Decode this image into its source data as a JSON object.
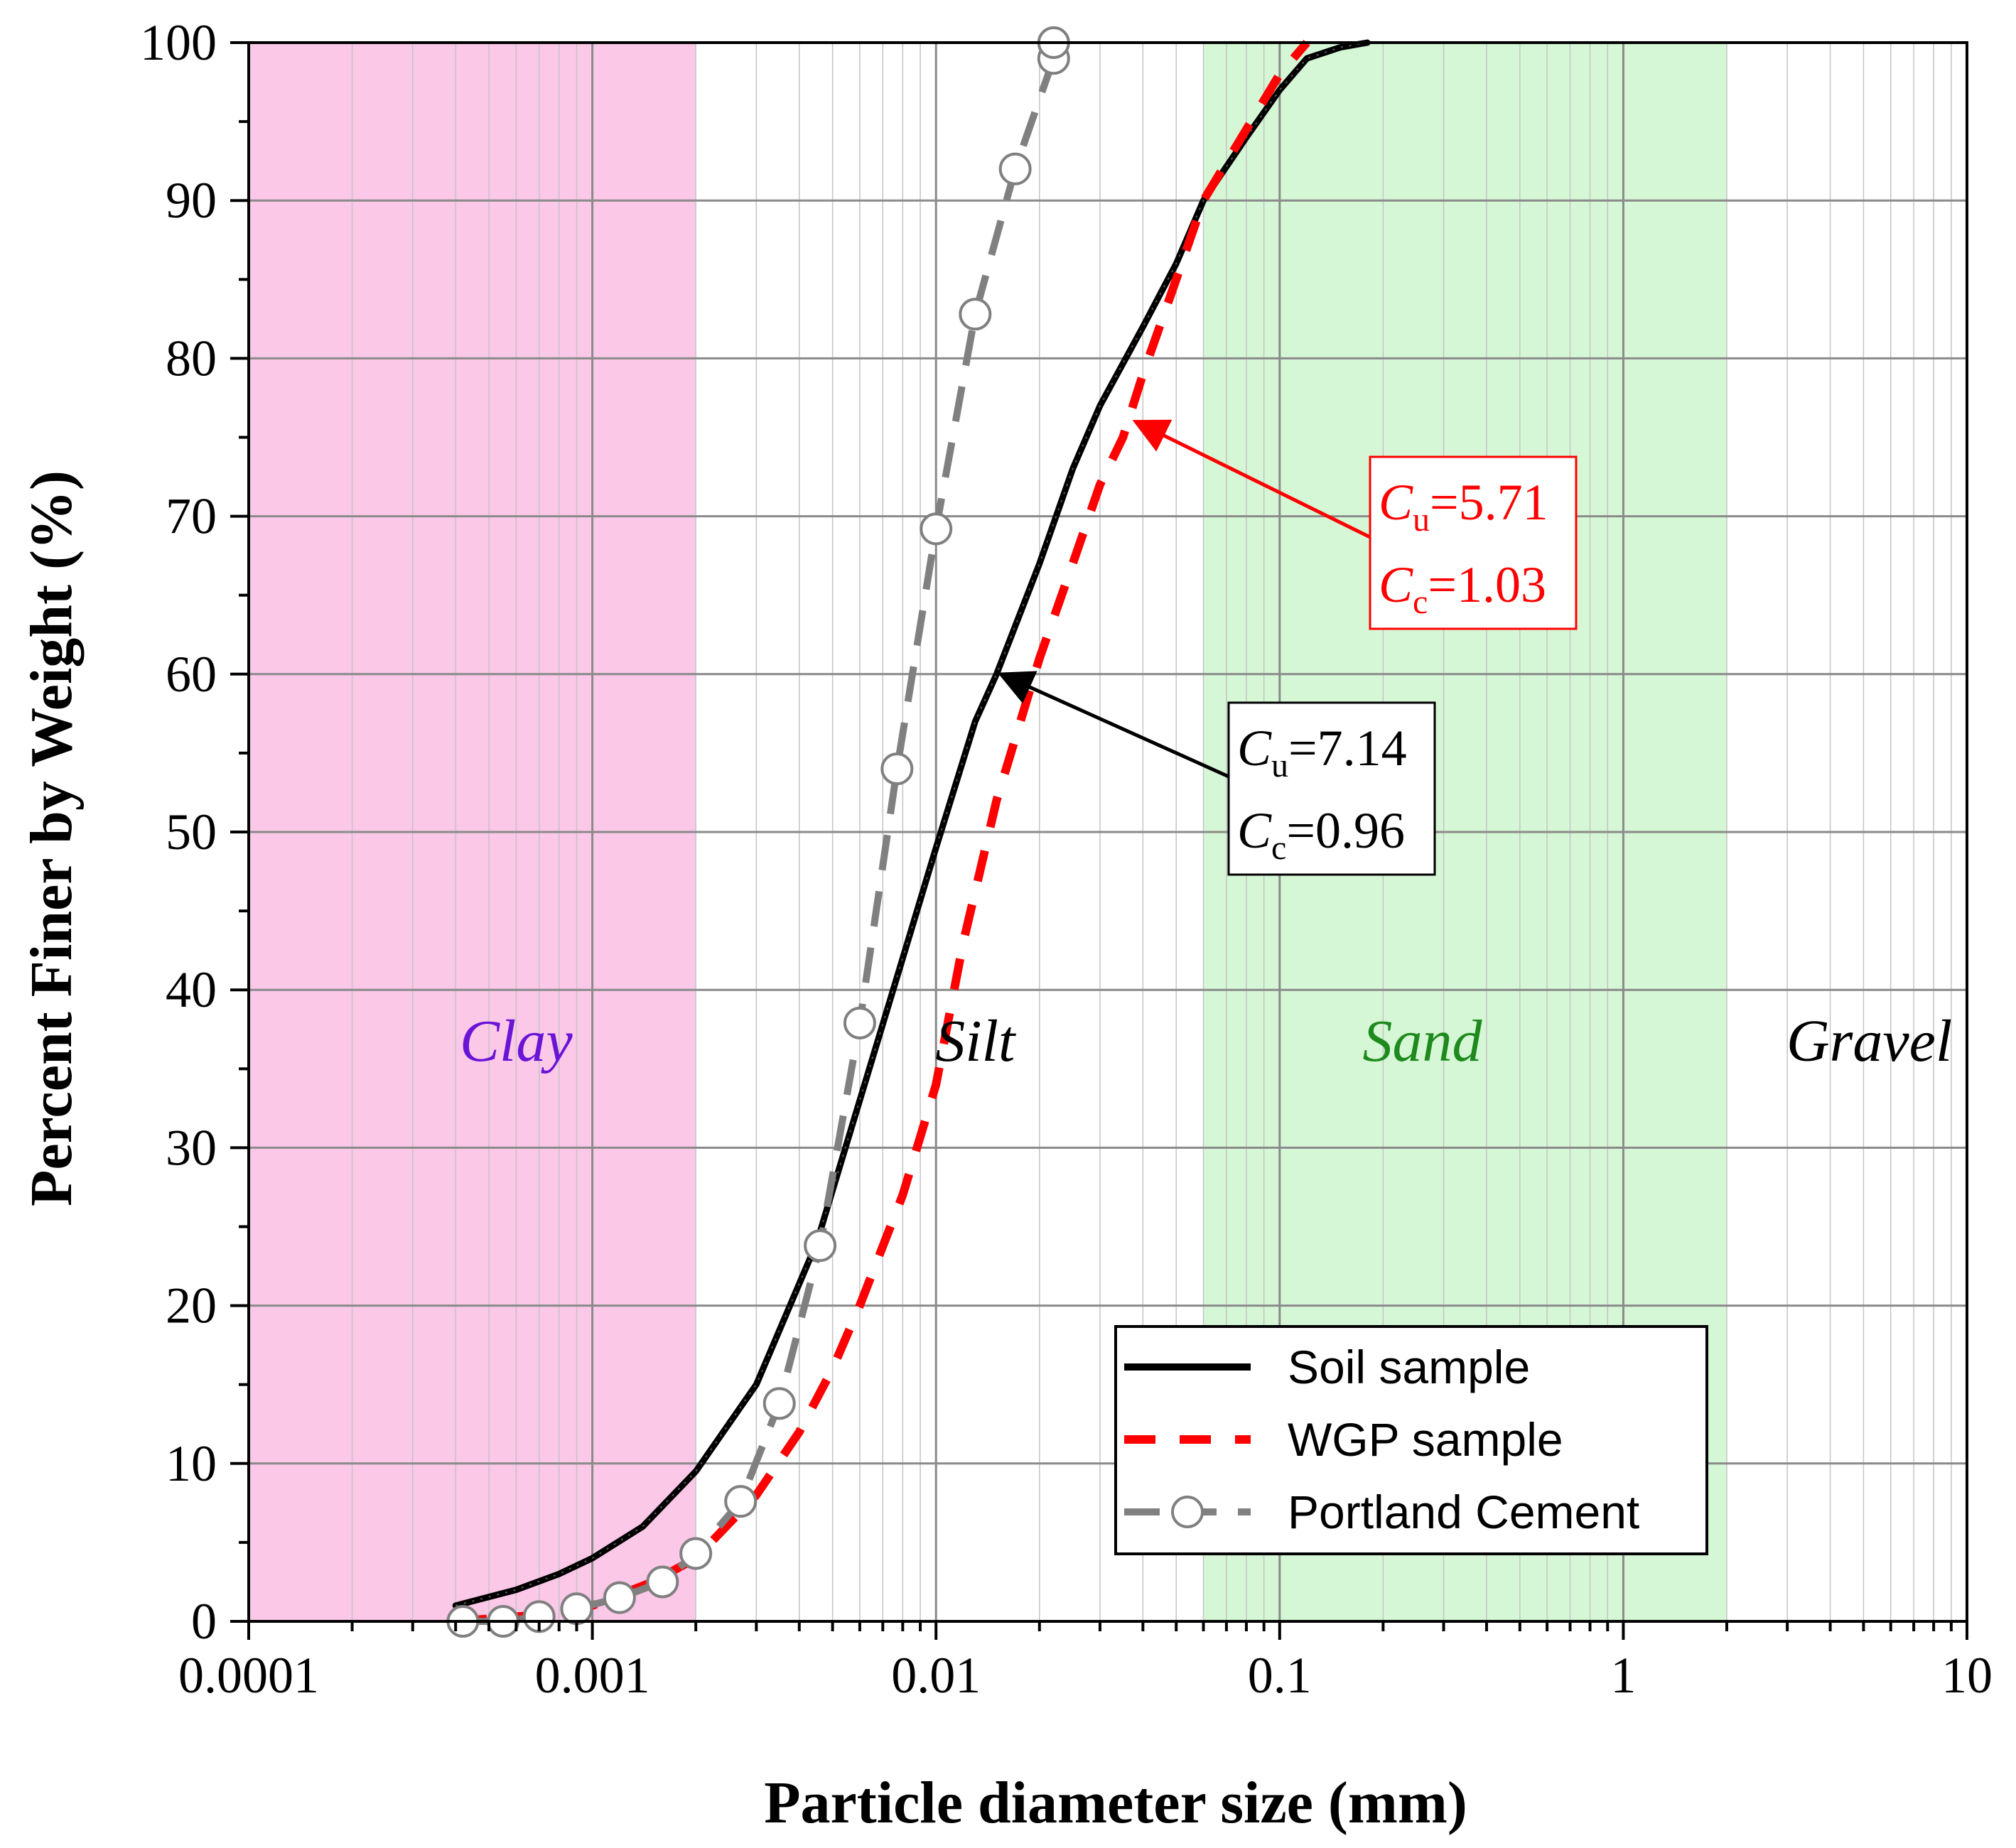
{
  "chart_data": {
    "type": "line",
    "xscale": "log",
    "xlabel": "Particle diameter size (mm)",
    "ylabel": "Percent Finer by Weight (%)",
    "xlim": [
      0.0001,
      10
    ],
    "ylim": [
      0,
      100
    ],
    "grid": true,
    "x_ticks": [
      0.0001,
      0.001,
      0.01,
      0.1,
      1,
      10
    ],
    "x_tick_labels": [
      "0.0001",
      "0.001",
      "0.01",
      "0.1",
      "1",
      "10"
    ],
    "y_ticks": [
      0,
      10,
      20,
      30,
      40,
      50,
      60,
      70,
      80,
      90,
      100
    ],
    "y_tick_labels": [
      "0",
      "10",
      "20",
      "30",
      "40",
      "50",
      "60",
      "70",
      "80",
      "90",
      "100"
    ],
    "regions": [
      {
        "name": "Clay",
        "x_range": [
          0.0001,
          0.002
        ],
        "fill": "#fbc8e8",
        "label_color": "#6a14d6"
      },
      {
        "name": "Silt",
        "x_range": [
          0.002,
          0.06
        ],
        "fill": "#ffffff",
        "label_color": "#000000"
      },
      {
        "name": "Sand",
        "x_range": [
          0.06,
          2
        ],
        "fill": "#d6f7d6",
        "label_color": "#1e8a1e"
      },
      {
        "name": "Gravel",
        "x_range": [
          2,
          10
        ],
        "fill": "#ffffff",
        "label_color": "#000000"
      }
    ],
    "series": [
      {
        "name": "Soil sample",
        "color": "#000000",
        "style": "solid",
        "x": [
          0.0004,
          0.0006,
          0.0008,
          0.001,
          0.0014,
          0.002,
          0.003,
          0.0045,
          0.006,
          0.008,
          0.01,
          0.013,
          0.015,
          0.02,
          0.025,
          0.03,
          0.04,
          0.05,
          0.06,
          0.08,
          0.1,
          0.12,
          0.15,
          0.18
        ],
        "y": [
          1,
          2,
          3,
          4,
          6,
          9.5,
          15,
          24,
          33,
          42,
          49,
          57,
          60,
          67,
          73,
          77,
          82,
          86,
          90,
          94,
          97,
          99,
          99.7,
          100
        ]
      },
      {
        "name": "WGP sample",
        "color": "#ff0000",
        "style": "dashed",
        "x": [
          0.0004,
          0.0006,
          0.0008,
          0.001,
          0.0015,
          0.002,
          0.003,
          0.004,
          0.005,
          0.006,
          0.008,
          0.01,
          0.012,
          0.015,
          0.02,
          0.025,
          0.03,
          0.035,
          0.04,
          0.05,
          0.06,
          0.08,
          0.1,
          0.12
        ],
        "y": [
          0,
          0.3,
          0.5,
          1,
          2.5,
          4,
          8,
          12,
          16,
          20,
          27,
          34,
          43,
          52,
          61,
          67,
          72,
          75,
          79,
          85,
          90,
          94.5,
          98,
          100
        ]
      },
      {
        "name": "Portland Cement",
        "color": "#808080",
        "style": "dashed-marker",
        "marker": "open-circle",
        "x": [
          0.00042,
          0.00055,
          0.0007,
          0.0009,
          0.0012,
          0.0016,
          0.002,
          0.0027,
          0.0035,
          0.0046,
          0.006,
          0.0077,
          0.01,
          0.013,
          0.017,
          0.022,
          0.022
        ],
        "y": [
          0,
          0,
          0.3,
          0.8,
          1.5,
          2.5,
          4.3,
          7.6,
          13.8,
          23.8,
          37.9,
          54,
          69.2,
          82.8,
          92,
          99,
          100
        ]
      }
    ],
    "annotations": [
      {
        "cu_label": "C",
        "cu_sub": "u",
        "cu_value": "=5.71",
        "cc_label": "C",
        "cc_sub": "c",
        "cc_value": "=1.03",
        "color": "#ff0000",
        "arrow_to": [
          0.037,
          76
        ]
      },
      {
        "cu_label": "C",
        "cu_sub": "u",
        "cu_value": "=7.14",
        "cc_label": "C",
        "cc_sub": "c",
        "cc_value": "=0.96",
        "color": "#000000",
        "arrow_to": [
          0.015,
          60
        ]
      }
    ],
    "legend": {
      "position": "bottom-right",
      "entries": [
        "Soil sample",
        "WGP sample",
        "Portland Cement"
      ]
    }
  }
}
